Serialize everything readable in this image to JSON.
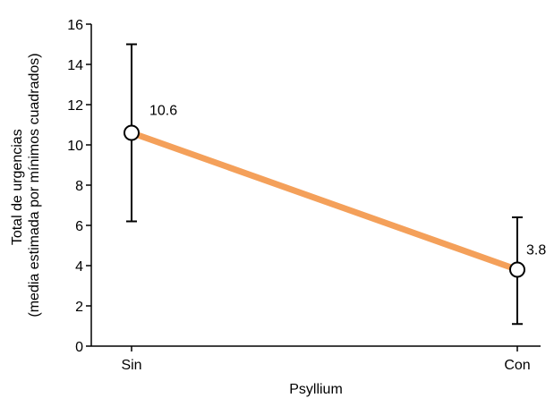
{
  "chart_data": {
    "type": "line",
    "xlabel": "Psyllium",
    "ylabel_line1": "Total de urgencias",
    "ylabel_line2": "(media estimada por mínimos cuadrados)",
    "categories": [
      "Sin",
      "Con"
    ],
    "ylim": [
      0,
      16
    ],
    "yticks": [
      0,
      2,
      4,
      6,
      8,
      10,
      12,
      14,
      16
    ],
    "grid": false,
    "series": [
      {
        "values": [
          10.6,
          3.8
        ],
        "error_low": [
          6.2,
          1.1
        ],
        "error_high": [
          15.0,
          6.4
        ],
        "data_labels": [
          "10.6",
          "3.8"
        ]
      }
    ],
    "colors": {
      "line": "#f4a05a",
      "marker_fill": "#ffffff",
      "axis": "#000000"
    }
  }
}
